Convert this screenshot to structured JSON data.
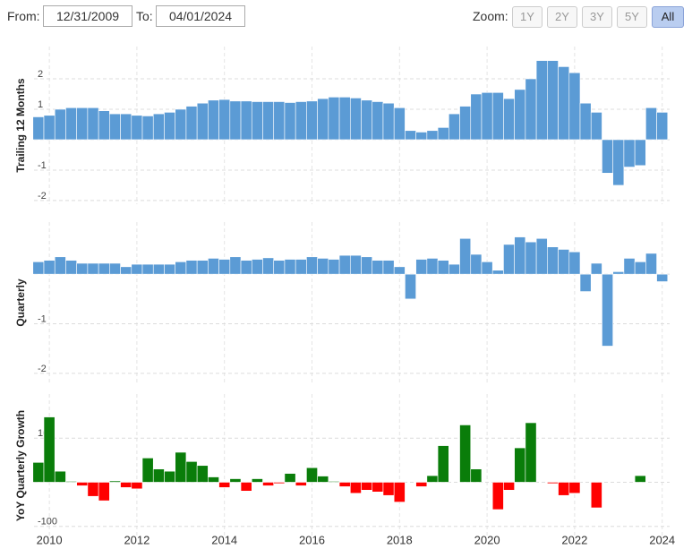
{
  "controls": {
    "from_label": "From:",
    "from_value": "12/31/2009",
    "to_label": "To:",
    "to_value": "04/01/2024",
    "zoom_label": "Zoom:",
    "zoom_options": [
      "1Y",
      "2Y",
      "3Y",
      "5Y",
      "All"
    ],
    "zoom_active": "All"
  },
  "chart_data": [
    {
      "type": "bar",
      "ylabel": "Trailing 12 Months",
      "color": "#5b9bd5",
      "x": [
        2009.75,
        2010,
        2010.25,
        2010.5,
        2010.75,
        2011,
        2011.25,
        2011.5,
        2011.75,
        2012,
        2012.25,
        2012.5,
        2012.75,
        2013,
        2013.25,
        2013.5,
        2013.75,
        2014,
        2014.25,
        2014.5,
        2014.75,
        2015,
        2015.25,
        2015.5,
        2015.75,
        2016,
        2016.25,
        2016.5,
        2016.75,
        2017,
        2017.25,
        2017.5,
        2017.75,
        2018,
        2018.25,
        2018.5,
        2018.75,
        2019,
        2019.25,
        2019.5,
        2019.75,
        2020,
        2020.25,
        2020.5,
        2020.75,
        2021,
        2021.25,
        2021.5,
        2021.75,
        2022,
        2022.25,
        2022.5,
        2022.75,
        2023,
        2023.25,
        2023.5,
        2023.75,
        2024
      ],
      "values": [
        0.75,
        0.8,
        1.0,
        1.05,
        1.05,
        1.05,
        0.95,
        0.85,
        0.85,
        0.8,
        0.78,
        0.85,
        0.9,
        1.0,
        1.1,
        1.2,
        1.3,
        1.32,
        1.27,
        1.27,
        1.25,
        1.25,
        1.25,
        1.22,
        1.25,
        1.27,
        1.35,
        1.4,
        1.4,
        1.37,
        1.3,
        1.25,
        1.2,
        1.05,
        0.3,
        0.25,
        0.3,
        0.4,
        0.85,
        1.1,
        1.5,
        1.55,
        1.55,
        1.35,
        1.65,
        2.0,
        2.6,
        2.6,
        2.4,
        2.2,
        1.2,
        0.9,
        -1.1,
        -1.5,
        -0.9,
        -0.85,
        1.05,
        0.9
      ],
      "xlim": [
        2009.65,
        2024.17
      ],
      "xticks": [
        2010,
        2012,
        2014,
        2016,
        2018,
        2020,
        2022,
        2024
      ],
      "ylim": [
        -2.12,
        3.06
      ],
      "yticks": [
        -2,
        -1,
        0,
        1,
        2
      ],
      "grid": true
    },
    {
      "type": "bar",
      "ylabel": "Quarterly",
      "color": "#5b9bd5",
      "x": [
        2009.75,
        2010,
        2010.25,
        2010.5,
        2010.75,
        2011,
        2011.25,
        2011.5,
        2011.75,
        2012,
        2012.25,
        2012.5,
        2012.75,
        2013,
        2013.25,
        2013.5,
        2013.75,
        2014,
        2014.25,
        2014.5,
        2014.75,
        2015,
        2015.25,
        2015.5,
        2015.75,
        2016,
        2016.25,
        2016.5,
        2016.75,
        2017,
        2017.25,
        2017.5,
        2017.75,
        2018,
        2018.25,
        2018.5,
        2018.75,
        2019,
        2019.25,
        2019.5,
        2019.75,
        2020,
        2020.25,
        2020.5,
        2020.75,
        2021,
        2021.25,
        2021.5,
        2021.75,
        2022,
        2022.25,
        2022.5,
        2022.75,
        2023,
        2023.25,
        2023.5,
        2023.75,
        2024
      ],
      "values": [
        0.25,
        0.28,
        0.35,
        0.28,
        0.22,
        0.22,
        0.22,
        0.22,
        0.15,
        0.2,
        0.2,
        0.2,
        0.2,
        0.25,
        0.28,
        0.28,
        0.32,
        0.3,
        0.35,
        0.28,
        0.3,
        0.33,
        0.28,
        0.3,
        0.3,
        0.35,
        0.32,
        0.3,
        0.38,
        0.38,
        0.35,
        0.28,
        0.28,
        0.15,
        -0.5,
        0.3,
        0.32,
        0.28,
        0.2,
        0.72,
        0.4,
        0.25,
        0.08,
        0.6,
        0.75,
        0.65,
        0.72,
        0.55,
        0.5,
        0.45,
        -0.35,
        0.22,
        -1.45,
        0.05,
        0.32,
        0.25,
        0.42,
        -0.15
      ],
      "xlim": [
        2009.65,
        2024.17
      ],
      "xticks": [
        2010,
        2012,
        2014,
        2016,
        2018,
        2020,
        2022,
        2024
      ],
      "ylim": [
        -2.2,
        1.05
      ],
      "yticks": [
        -2,
        -1,
        0
      ],
      "grid": true
    },
    {
      "type": "bar",
      "ylabel": "YoY Quarterly Growth",
      "positive_color": "#0a7d0a",
      "negative_color": "#ff0000",
      "x": [
        2009.75,
        2010,
        2010.25,
        2010.5,
        2010.75,
        2011,
        2011.25,
        2011.5,
        2011.75,
        2012,
        2012.25,
        2012.5,
        2012.75,
        2013,
        2013.25,
        2013.5,
        2013.75,
        2014,
        2014.25,
        2014.5,
        2014.75,
        2015,
        2015.25,
        2015.5,
        2015.75,
        2016,
        2016.25,
        2016.5,
        2016.75,
        2017,
        2017.25,
        2017.5,
        2017.75,
        2018,
        2018.25,
        2018.5,
        2018.75,
        2019,
        2019.25,
        2019.5,
        2019.75,
        2020,
        2020.25,
        2020.5,
        2020.75,
        2021,
        2021.25,
        2021.5,
        2021.75,
        2022,
        2022.25,
        2022.5,
        2022.75,
        2023,
        2023.25,
        2023.5,
        2023.75,
        2024
      ],
      "values": [
        45,
        148,
        25,
        2,
        -8,
        -32,
        -42,
        3,
        -12,
        -15,
        55,
        30,
        25,
        68,
        47,
        38,
        12,
        -12,
        8,
        -20,
        8,
        -8,
        -3,
        20,
        -8,
        33,
        14,
        2,
        -10,
        -25,
        -18,
        -22,
        -30,
        -45,
        0,
        -10,
        15,
        83,
        0,
        130,
        30,
        0,
        -62,
        -18,
        78,
        135,
        0,
        -3,
        -30,
        -25,
        0,
        -58,
        0,
        0,
        0,
        15,
        0,
        0
      ],
      "xlim": [
        2009.65,
        2024.17
      ],
      "xticks": [
        2010,
        2012,
        2014,
        2016,
        2018,
        2020,
        2022,
        2024
      ],
      "ylim": [
        -125,
        200
      ],
      "yticks": [
        -100,
        0,
        100
      ],
      "grid": true
    }
  ]
}
